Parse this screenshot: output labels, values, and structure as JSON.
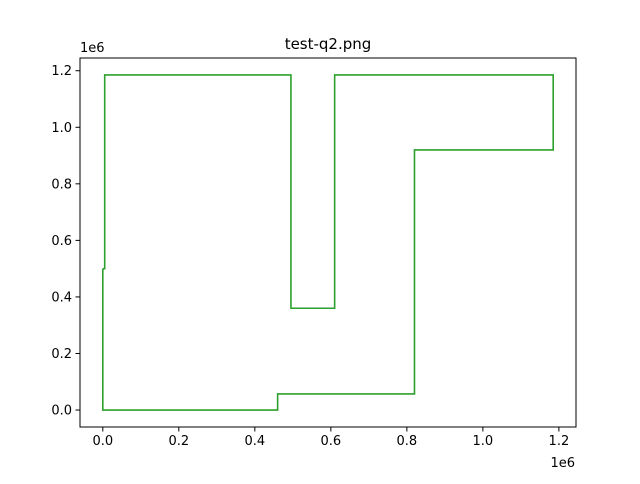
{
  "chart_data": {
    "type": "line",
    "title": "test-q2.png",
    "xlabel": "",
    "ylabel": "",
    "x_offset_label": "1e6",
    "y_offset_label": "1e6",
    "xlim": [
      -0.06,
      1.245
    ],
    "ylim": [
      -0.06,
      1.245
    ],
    "x_ticks": [
      0.0,
      0.2,
      0.4,
      0.6,
      0.8,
      1.0,
      1.2
    ],
    "x_tick_labels": [
      "0.0",
      "0.2",
      "0.4",
      "0.6",
      "0.8",
      "1.0",
      "1.2"
    ],
    "y_ticks": [
      0.0,
      0.2,
      0.4,
      0.6,
      0.8,
      1.0,
      1.2
    ],
    "y_tick_labels": [
      "0.0",
      "0.2",
      "0.4",
      "0.6",
      "0.8",
      "1.0",
      "1.2"
    ],
    "grid": false,
    "legend": "none",
    "series": [
      {
        "color": "#2ca02c",
        "points": [
          [
            0.0,
            0.5
          ],
          [
            0.0,
            0.0
          ],
          [
            0.46,
            0.0
          ],
          [
            0.46,
            0.057
          ],
          [
            0.82,
            0.057
          ],
          [
            0.82,
            0.92
          ],
          [
            1.185,
            0.92
          ],
          [
            1.185,
            1.185
          ],
          [
            0.61,
            1.185
          ],
          [
            0.61,
            0.36
          ],
          [
            0.495,
            0.36
          ],
          [
            0.495,
            1.185
          ],
          [
            0.005,
            1.185
          ],
          [
            0.005,
            0.5
          ],
          [
            0.0,
            0.5
          ]
        ]
      }
    ]
  }
}
